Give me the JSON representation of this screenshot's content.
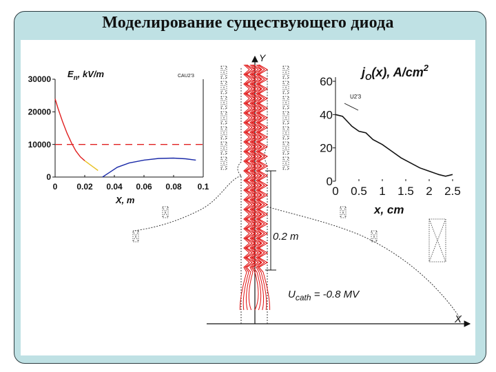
{
  "slide": {
    "title": "Моделирование существующего диода"
  },
  "diagram": {
    "y_axis_label": "Y",
    "x_axis_label": "X",
    "dimension_label": "0.2 m",
    "cathode_voltage_label": "U",
    "cathode_voltage_sub": "cath",
    "cathode_voltage_value": " = -0.8 MV"
  },
  "chart_data": [
    {
      "type": "line",
      "title_main": "E",
      "title_sub": "n",
      "title_rest": ", kV/m",
      "tag": "CAU2'3",
      "xlabel": "X, m",
      "x_ticks": [
        "0",
        "0.02",
        "0.04",
        "0.06",
        "0.08",
        "0.1"
      ],
      "y_ticks": [
        "0",
        "10000",
        "20000",
        "30000"
      ],
      "xlim": [
        0,
        0.1
      ],
      "ylim": [
        0,
        30000
      ],
      "series": [
        {
          "color": "#e02020",
          "style": "solid",
          "x": [
            0,
            0.002,
            0.005,
            0.008,
            0.011,
            0.014,
            0.017,
            0.02
          ],
          "y": [
            24000,
            21000,
            17000,
            13500,
            10500,
            8000,
            6200,
            5000
          ]
        },
        {
          "color": "#e8c020",
          "style": "solid",
          "x": [
            0.02,
            0.023,
            0.026,
            0.029
          ],
          "y": [
            5000,
            4000,
            3000,
            2000
          ]
        },
        {
          "color": "#e02020",
          "style": "dashed",
          "x": [
            0,
            0.1
          ],
          "y": [
            10000,
            10000
          ]
        },
        {
          "color": "#1a2aa8",
          "style": "solid",
          "x": [
            0.032,
            0.037,
            0.042,
            0.05,
            0.06,
            0.07,
            0.08,
            0.088,
            0.095
          ],
          "y": [
            0,
            1500,
            3000,
            4300,
            5200,
            5700,
            5800,
            5600,
            5200
          ]
        }
      ]
    },
    {
      "type": "line",
      "title_main": "j",
      "title_sub": "O",
      "title_rest": "(x), A/cm",
      "title_sup": "2",
      "tag": "U2'3",
      "xlabel": "x, cm",
      "x_ticks": [
        "0",
        "0.5",
        "1",
        "1.5",
        "2",
        "2.5"
      ],
      "y_ticks": [
        "0",
        "20",
        "40",
        "60"
      ],
      "xlim": [
        0,
        2.5
      ],
      "ylim": [
        0,
        60
      ],
      "series": [
        {
          "color": "#111111",
          "style": "solid",
          "x": [
            0,
            0.15,
            0.35,
            0.5,
            0.65,
            0.8,
            1.0,
            1.2,
            1.4,
            1.6,
            1.8,
            2.0,
            2.2,
            2.35,
            2.5
          ],
          "y": [
            40,
            39,
            33,
            30,
            29,
            25,
            22,
            18,
            14,
            11,
            8,
            6,
            4,
            3,
            4
          ]
        }
      ]
    }
  ]
}
